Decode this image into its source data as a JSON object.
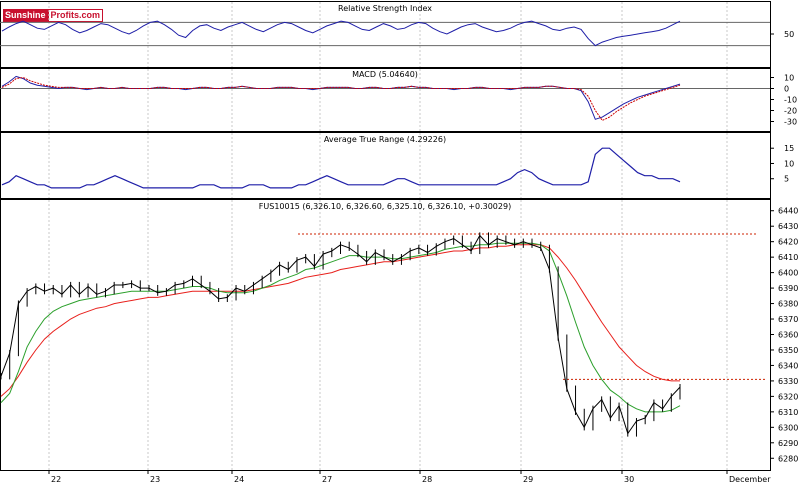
{
  "logo": {
    "part1": "Sunshine",
    "part2": "Profits.com"
  },
  "chart_data": [
    {
      "type": "line",
      "title": "Relative Strength Index",
      "ylim": [
        0,
        100
      ],
      "y_ticks": [
        50
      ],
      "reference_lines": [
        70,
        30
      ],
      "series": [
        {
          "values": [
            55,
            62,
            68,
            72,
            66,
            60,
            58,
            64,
            70,
            66,
            58,
            52,
            56,
            62,
            68,
            66,
            60,
            54,
            50,
            56,
            64,
            70,
            72,
            66,
            58,
            48,
            44,
            56,
            64,
            66,
            60,
            56,
            62,
            66,
            70,
            64,
            58,
            54,
            60,
            66,
            70,
            68,
            62,
            56,
            52,
            58,
            64,
            68,
            72,
            70,
            64,
            58,
            56,
            62,
            68,
            64,
            58,
            60,
            66,
            70,
            68,
            60,
            54,
            50,
            56,
            62,
            66,
            68,
            62,
            58,
            54,
            56,
            60,
            66,
            70,
            72,
            68,
            64,
            58,
            56,
            60,
            62,
            58,
            42,
            30,
            36,
            40,
            44,
            46,
            48,
            50,
            52,
            54,
            56,
            60,
            66,
            72
          ]
        }
      ]
    },
    {
      "type": "line",
      "title": "MACD (5.04640)",
      "ylim": [
        -35,
        15
      ],
      "y_ticks": [
        10,
        0,
        -10,
        -20,
        -30
      ],
      "series": [
        {
          "values": [
            2,
            6,
            11,
            9,
            5,
            3,
            2,
            1,
            0,
            1,
            1,
            0,
            -1,
            0,
            1,
            0,
            0,
            1,
            0,
            0,
            0,
            0,
            1,
            1,
            0,
            0,
            -1,
            0,
            1,
            1,
            0,
            0,
            1,
            1,
            2,
            1,
            0,
            0,
            0,
            1,
            1,
            1,
            0,
            0,
            -1,
            0,
            1,
            1,
            1,
            1,
            0,
            0,
            1,
            1,
            0,
            0,
            1,
            1,
            2,
            1,
            1,
            0,
            0,
            0,
            -1,
            0,
            0,
            1,
            1,
            0,
            0,
            0,
            -1,
            0,
            1,
            1,
            1,
            2,
            2,
            1,
            0,
            0,
            -2,
            -12,
            -28,
            -26,
            -22,
            -18,
            -14,
            -11,
            -8,
            -6,
            -4,
            -2,
            0,
            2,
            4
          ]
        },
        {
          "values": [
            1,
            4,
            9,
            10,
            7,
            5,
            3,
            2,
            1,
            1,
            1,
            0,
            0,
            0,
            1,
            0,
            0,
            1,
            0,
            0,
            0,
            0,
            1,
            1,
            0,
            0,
            0,
            0,
            1,
            1,
            0,
            0,
            1,
            1,
            2,
            1,
            0,
            0,
            0,
            1,
            1,
            1,
            0,
            0,
            0,
            0,
            1,
            1,
            1,
            1,
            0,
            0,
            1,
            1,
            0,
            0,
            1,
            1,
            2,
            1,
            1,
            0,
            0,
            0,
            0,
            0,
            0,
            1,
            1,
            0,
            0,
            0,
            0,
            0,
            1,
            1,
            1,
            2,
            2,
            1,
            0,
            0,
            -1,
            -7,
            -20,
            -29,
            -26,
            -21,
            -17,
            -13,
            -10,
            -7,
            -5,
            -3,
            -1,
            1,
            3
          ]
        }
      ]
    },
    {
      "type": "line",
      "title": "Average True Range (4.29226)",
      "ylim": [
        0,
        19
      ],
      "y_ticks": [
        15,
        10,
        5
      ],
      "series": [
        {
          "values": [
            3,
            4,
            6,
            5,
            4,
            3,
            3,
            2,
            2,
            2,
            2,
            2,
            3,
            3,
            4,
            5,
            6,
            5,
            4,
            3,
            2,
            2,
            2,
            2,
            2,
            2,
            2,
            2,
            3,
            3,
            3,
            2,
            2,
            2,
            2,
            3,
            3,
            3,
            2,
            2,
            2,
            2,
            3,
            3,
            4,
            5,
            6,
            5,
            4,
            3,
            3,
            3,
            3,
            3,
            3,
            4,
            5,
            5,
            4,
            3,
            3,
            3,
            3,
            3,
            3,
            3,
            3,
            3,
            3,
            3,
            3,
            4,
            5,
            7,
            8,
            7,
            5,
            4,
            3,
            3,
            3,
            3,
            3,
            4,
            13,
            15,
            15,
            13,
            11,
            9,
            7,
            6,
            6,
            5,
            5,
            5,
            4
          ]
        }
      ]
    },
    {
      "type": "line",
      "title": "FUS10015 (6,326.10, 6,326.60, 6,325.10, 6,326.10, +0.30029)",
      "ylim": [
        6275,
        6445
      ],
      "y_ticks": [
        6440,
        6430,
        6420,
        6410,
        6400,
        6390,
        6380,
        6370,
        6360,
        6350,
        6340,
        6330,
        6320,
        6310,
        6300,
        6290,
        6280
      ],
      "x_tick_labels": [
        "22",
        "23",
        "24",
        "27",
        "28",
        "29",
        "30",
        "December"
      ],
      "reference_lines": [
        6425,
        6331
      ],
      "series": [
        {
          "values": [
            6333,
            6348,
            6380,
            6388,
            6391,
            6388,
            6390,
            6386,
            6392,
            6386,
            6391,
            6386,
            6388,
            6392,
            6392,
            6393,
            6390,
            6390,
            6387,
            6388,
            6392,
            6393,
            6396,
            6392,
            6388,
            6383,
            6384,
            6390,
            6388,
            6392,
            6396,
            6400,
            6405,
            6402,
            6408,
            6410,
            6404,
            6412,
            6414,
            6418,
            6416,
            6412,
            6407,
            6413,
            6410,
            6407,
            6410,
            6414,
            6416,
            6413,
            6417,
            6420,
            6422,
            6418,
            6414,
            6424,
            6418,
            6422,
            6420,
            6418,
            6420,
            6418,
            6416,
            6402,
            6358,
            6325,
            6310,
            6300,
            6312,
            6318,
            6306,
            6314,
            6296,
            6304,
            6306,
            6316,
            6312,
            6320,
            6326
          ]
        },
        {
          "values": [
            6316,
            6322,
            6336,
            6352,
            6362,
            6370,
            6375,
            6378,
            6380,
            6382,
            6383,
            6384,
            6385,
            6386,
            6387,
            6388,
            6388,
            6388,
            6388,
            6388,
            6389,
            6390,
            6391,
            6391,
            6390,
            6388,
            6387,
            6387,
            6387,
            6388,
            6390,
            6392,
            6395,
            6397,
            6399,
            6402,
            6403,
            6405,
            6407,
            6409,
            6411,
            6411,
            6410,
            6410,
            6410,
            6409,
            6409,
            6410,
            6411,
            6412,
            6413,
            6415,
            6416,
            6417,
            6417,
            6418,
            6418,
            6419,
            6419,
            6419,
            6419,
            6419,
            6418,
            6414,
            6400,
            6385,
            6368,
            6352,
            6340,
            6331,
            6324,
            6320,
            6315,
            6312,
            6310,
            6310,
            6310,
            6311,
            6314
          ]
        },
        {
          "values": [
            6320,
            6325,
            6333,
            6342,
            6350,
            6357,
            6362,
            6366,
            6370,
            6373,
            6375,
            6377,
            6378,
            6380,
            6381,
            6382,
            6383,
            6384,
            6384,
            6385,
            6386,
            6387,
            6388,
            6388,
            6388,
            6388,
            6388,
            6388,
            6388,
            6389,
            6390,
            6391,
            6392,
            6393,
            6395,
            6397,
            6398,
            6399,
            6400,
            6402,
            6403,
            6404,
            6405,
            6406,
            6407,
            6407,
            6408,
            6409,
            6410,
            6411,
            6412,
            6413,
            6414,
            6414,
            6415,
            6416,
            6416,
            6417,
            6417,
            6418,
            6418,
            6418,
            6418,
            6416,
            6410,
            6403,
            6395,
            6386,
            6377,
            6368,
            6360,
            6352,
            6346,
            6340,
            6336,
            6333,
            6331,
            6330,
            6330
          ]
        }
      ]
    }
  ],
  "colors": {
    "price": "#000000",
    "ma_fast": "#2ca02c",
    "ma_slow": "#e8201c",
    "indicator": "#1f1fa8",
    "macd_signal": "#cc0000",
    "reference": "#cc2200",
    "grid": "#c8c8c8"
  }
}
